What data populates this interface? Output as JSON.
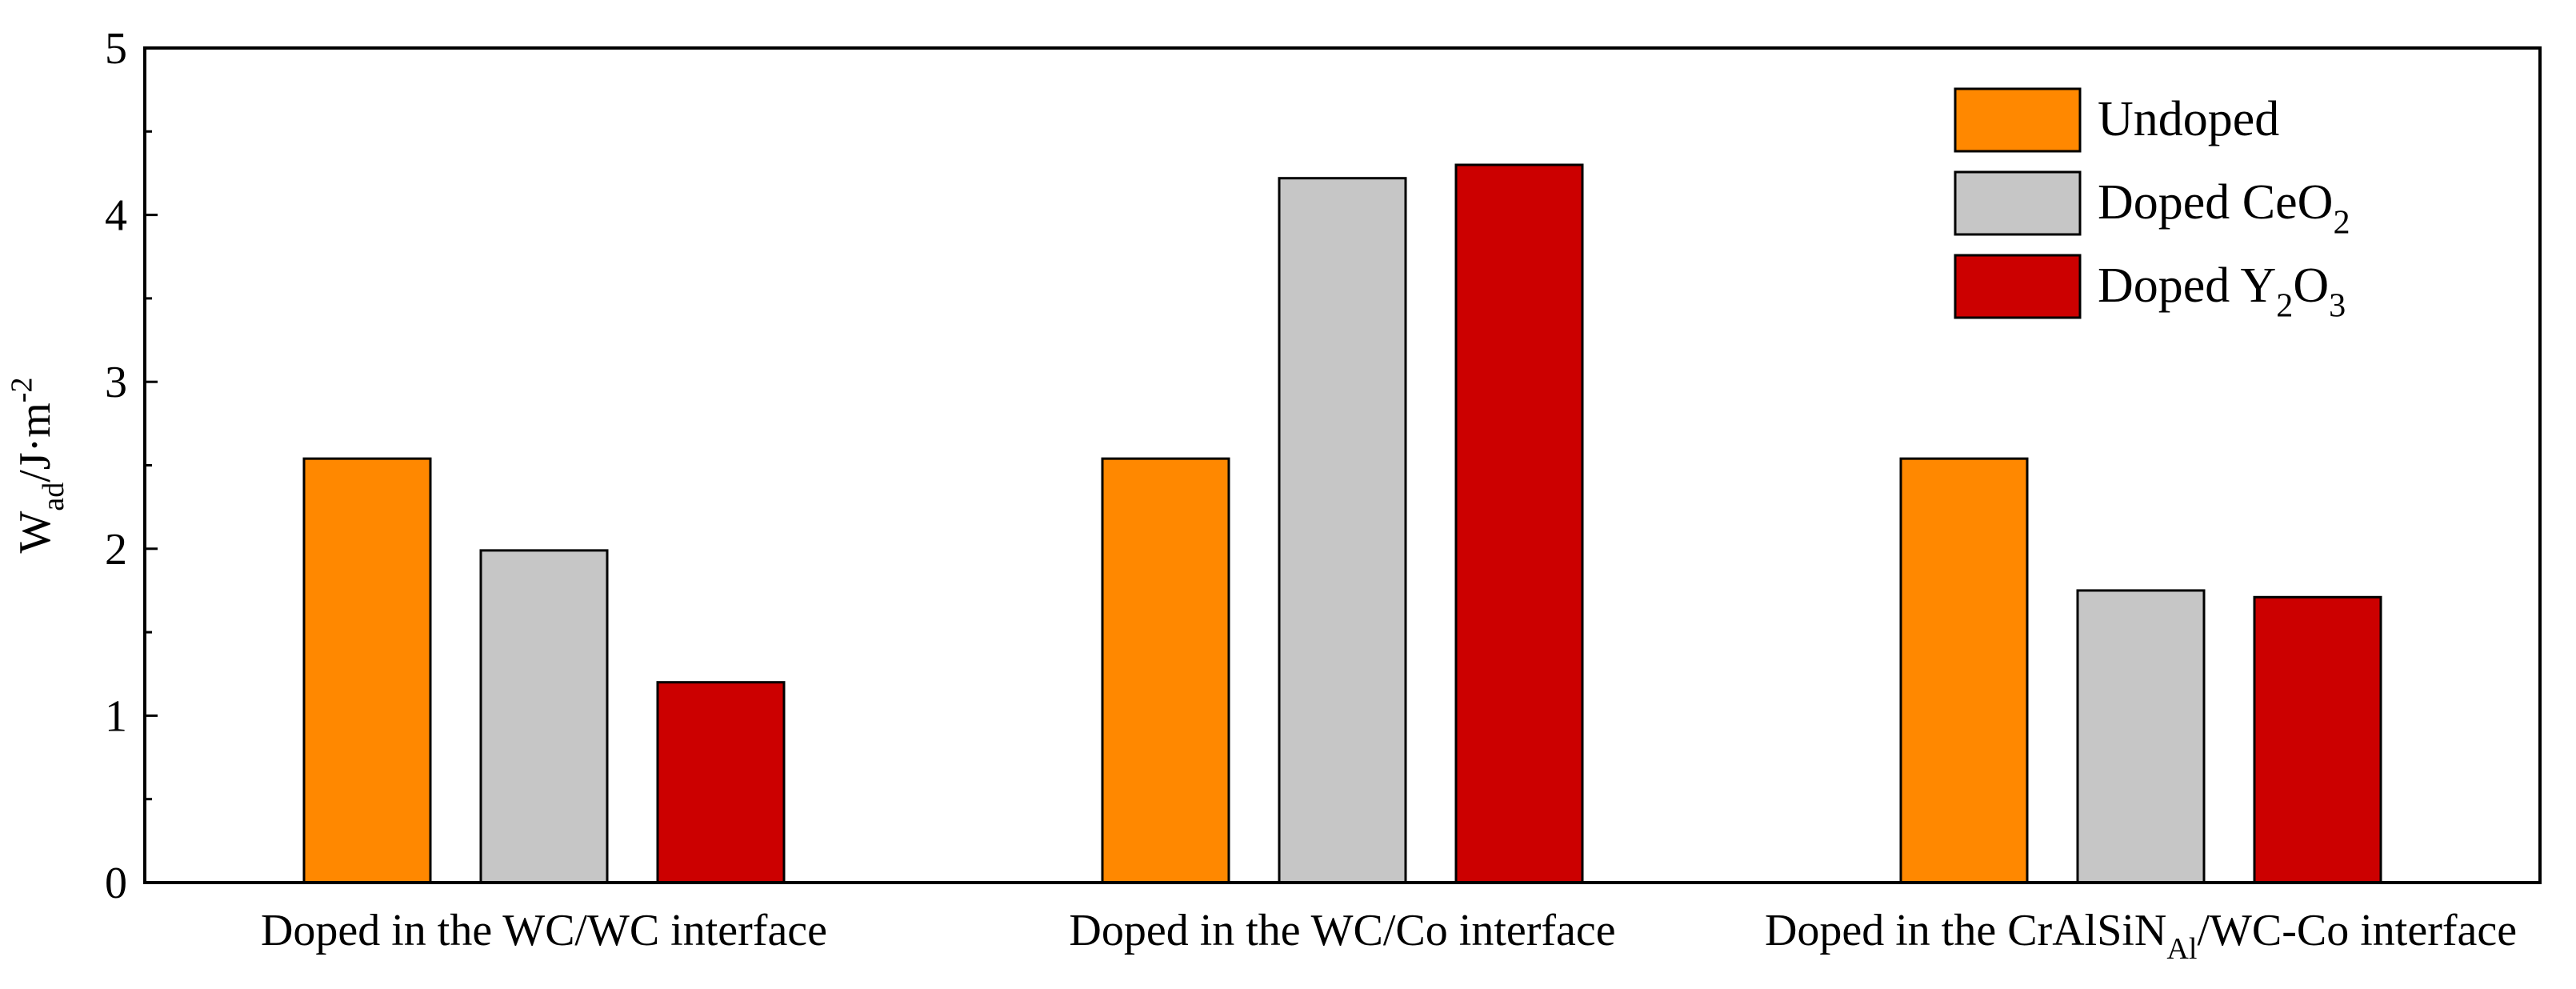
{
  "chart_data": {
    "type": "bar",
    "y_label": [
      "W",
      {
        "sub": "ad"
      },
      "/J·m",
      {
        "sup": "-2"
      }
    ],
    "categories": [
      [
        "Doped in the WC/WC interface"
      ],
      [
        "Doped in the WC/Co interface"
      ],
      [
        "Doped in the CrAlSiN",
        {
          "sub": "Al"
        },
        "/WC-Co interface"
      ]
    ],
    "series": [
      {
        "name": [
          "Undoped"
        ],
        "color": "#ff8800",
        "values": [
          2.54,
          2.54,
          2.54
        ]
      },
      {
        "name": [
          "Doped CeO",
          {
            "sub": "2"
          }
        ],
        "color": "#c6c6c6",
        "values": [
          1.99,
          4.22,
          1.75
        ]
      },
      {
        "name": [
          "Doped Y",
          {
            "sub": "2"
          },
          "O",
          {
            "sub": "3"
          }
        ],
        "color": "#cc0000",
        "values": [
          1.2,
          4.3,
          1.71
        ]
      }
    ],
    "ylim": [
      0,
      5
    ],
    "yticks": [
      0,
      1,
      2,
      3,
      4,
      5
    ],
    "legend": "upper right"
  }
}
